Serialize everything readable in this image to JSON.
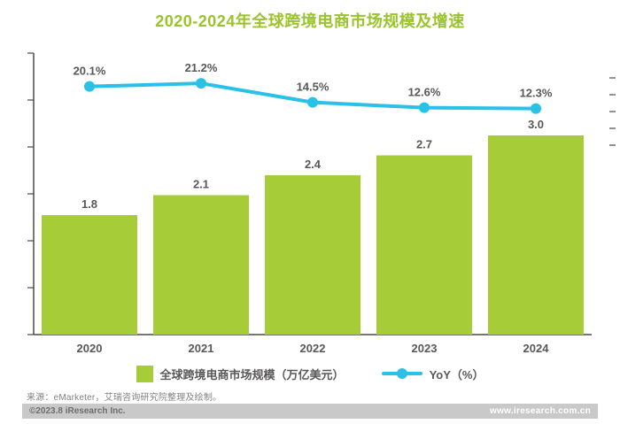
{
  "header": {
    "title": "2020-2024年全球跨境电商市场规模及增速"
  },
  "chart_data": {
    "type": "bar+line",
    "title": "2020-2024年全球跨境电商市场规模及增速",
    "categories": [
      "2020",
      "2021",
      "2022",
      "2023",
      "2024"
    ],
    "series": [
      {
        "name": "全球跨境电商市场规模（万亿美元）",
        "type": "bar",
        "values": [
          1.8,
          2.1,
          2.4,
          2.7,
          3.0
        ],
        "labels": [
          "1.8",
          "2.1",
          "2.4",
          "2.7",
          "3.0"
        ],
        "color": "#a6cd38"
      },
      {
        "name": "YoY（%）",
        "type": "line",
        "values": [
          20.1,
          21.2,
          14.5,
          12.6,
          12.3
        ],
        "labels": [
          "20.1%",
          "21.2%",
          "14.5%",
          "12.6%",
          "12.3%"
        ],
        "color": "#29c1e8"
      }
    ],
    "ylim_left": [
      0,
      4.5
    ],
    "ylim_right": [
      0,
      40
    ],
    "grid": false,
    "legend_position": "bottom"
  },
  "legend": {
    "bar_label": "全球跨境电商市场规模（万亿美元）",
    "line_label": "YoY（%）"
  },
  "footer": {
    "source": "来源：eMarketer，艾瑞咨询研究院整理及绘制。",
    "copyright": "©2023.8 iResearch Inc.",
    "website": "www.iresearch.com.cn"
  },
  "colors": {
    "bar": "#a6cd38",
    "line": "#29c1e8",
    "title": "#9ac32c",
    "label": "#595757",
    "axis": "#4a4a4a",
    "footer_bar": "#c9c9c9"
  }
}
